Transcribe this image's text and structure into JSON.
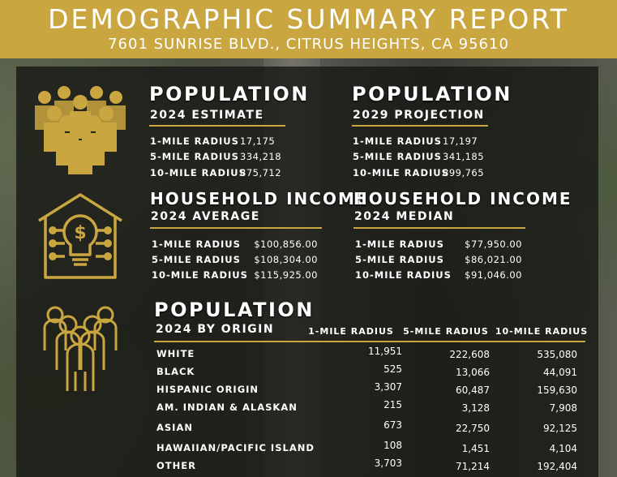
{
  "header": {
    "title": "DEMOGRAPHIC SUMMARY REPORT",
    "subtitle": "7601 SUNRISE BLVD., CITRUS HEIGHTS, CA 95610"
  },
  "colors": {
    "accent": "#caa641",
    "panel": "#161614",
    "text": "#ffffff"
  },
  "icons": [
    "people-group-icon",
    "house-lightbulb-dollar-icon",
    "people-outline-icon"
  ],
  "population_2024": {
    "title": "POPULATION",
    "subtitle": "2024 ESTIMATE",
    "rows": [
      {
        "label": "1-MILE RADIUS",
        "value": "17,175"
      },
      {
        "label": "5-MILE RADIUS",
        "value": "334,218"
      },
      {
        "label": "10-MILE RADIUS",
        "value": "875,712"
      }
    ]
  },
  "population_2029": {
    "title": "POPULATION",
    "subtitle": "2029 PROJECTION",
    "rows": [
      {
        "label": "1-MILE RADIUS",
        "value": "17,197"
      },
      {
        "label": "5-MILE RADIUS",
        "value": "341,185"
      },
      {
        "label": "10-MILE RADIUS",
        "value": "899,765"
      }
    ]
  },
  "income_average": {
    "title": "HOUSEHOLD INCOME",
    "subtitle": "2024 AVERAGE",
    "rows": [
      {
        "label": "1-MILE RADIUS",
        "value": "$100,856.00"
      },
      {
        "label": "5-MILE RADIUS",
        "value": "$108,304.00"
      },
      {
        "label": "10-MILE RADIUS",
        "value": "$115,925.00"
      }
    ]
  },
  "income_median": {
    "title": "HOUSEHOLD INCOME",
    "subtitle": "2024 MEDIAN",
    "rows": [
      {
        "label": "1-MILE RADIUS",
        "value": "$77,950.00"
      },
      {
        "label": "5-MILE RADIUS",
        "value": "$86,021.00"
      },
      {
        "label": "10-MILE RADIUS",
        "value": "$91,046.00"
      }
    ]
  },
  "origin": {
    "title": "POPULATION",
    "subtitle": "2024 BY ORIGIN",
    "columns": [
      "1-MILE RADIUS",
      "5-MILE RADIUS",
      "10-MILE RADIUS"
    ],
    "rows": [
      {
        "label": "WHITE",
        "values": [
          "11,951",
          "222,608",
          "535,080"
        ]
      },
      {
        "label": "BLACK",
        "values": [
          "525",
          "13,066",
          "44,091"
        ]
      },
      {
        "label": "HISPANIC ORIGIN",
        "values": [
          "3,307",
          "60,487",
          "159,630"
        ]
      },
      {
        "label": "AM. INDIAN & ALASKAN",
        "values": [
          "215",
          "3,128",
          "7,908"
        ]
      },
      {
        "label": "ASIAN",
        "values": [
          "673",
          "22,750",
          "92,125"
        ]
      },
      {
        "label": "HAWAIIAN/PACIFIC ISLAND",
        "values": [
          "108",
          "1,451",
          "4,104"
        ]
      },
      {
        "label": "OTHER",
        "values": [
          "3,703",
          "71,214",
          "192,404"
        ]
      }
    ]
  }
}
